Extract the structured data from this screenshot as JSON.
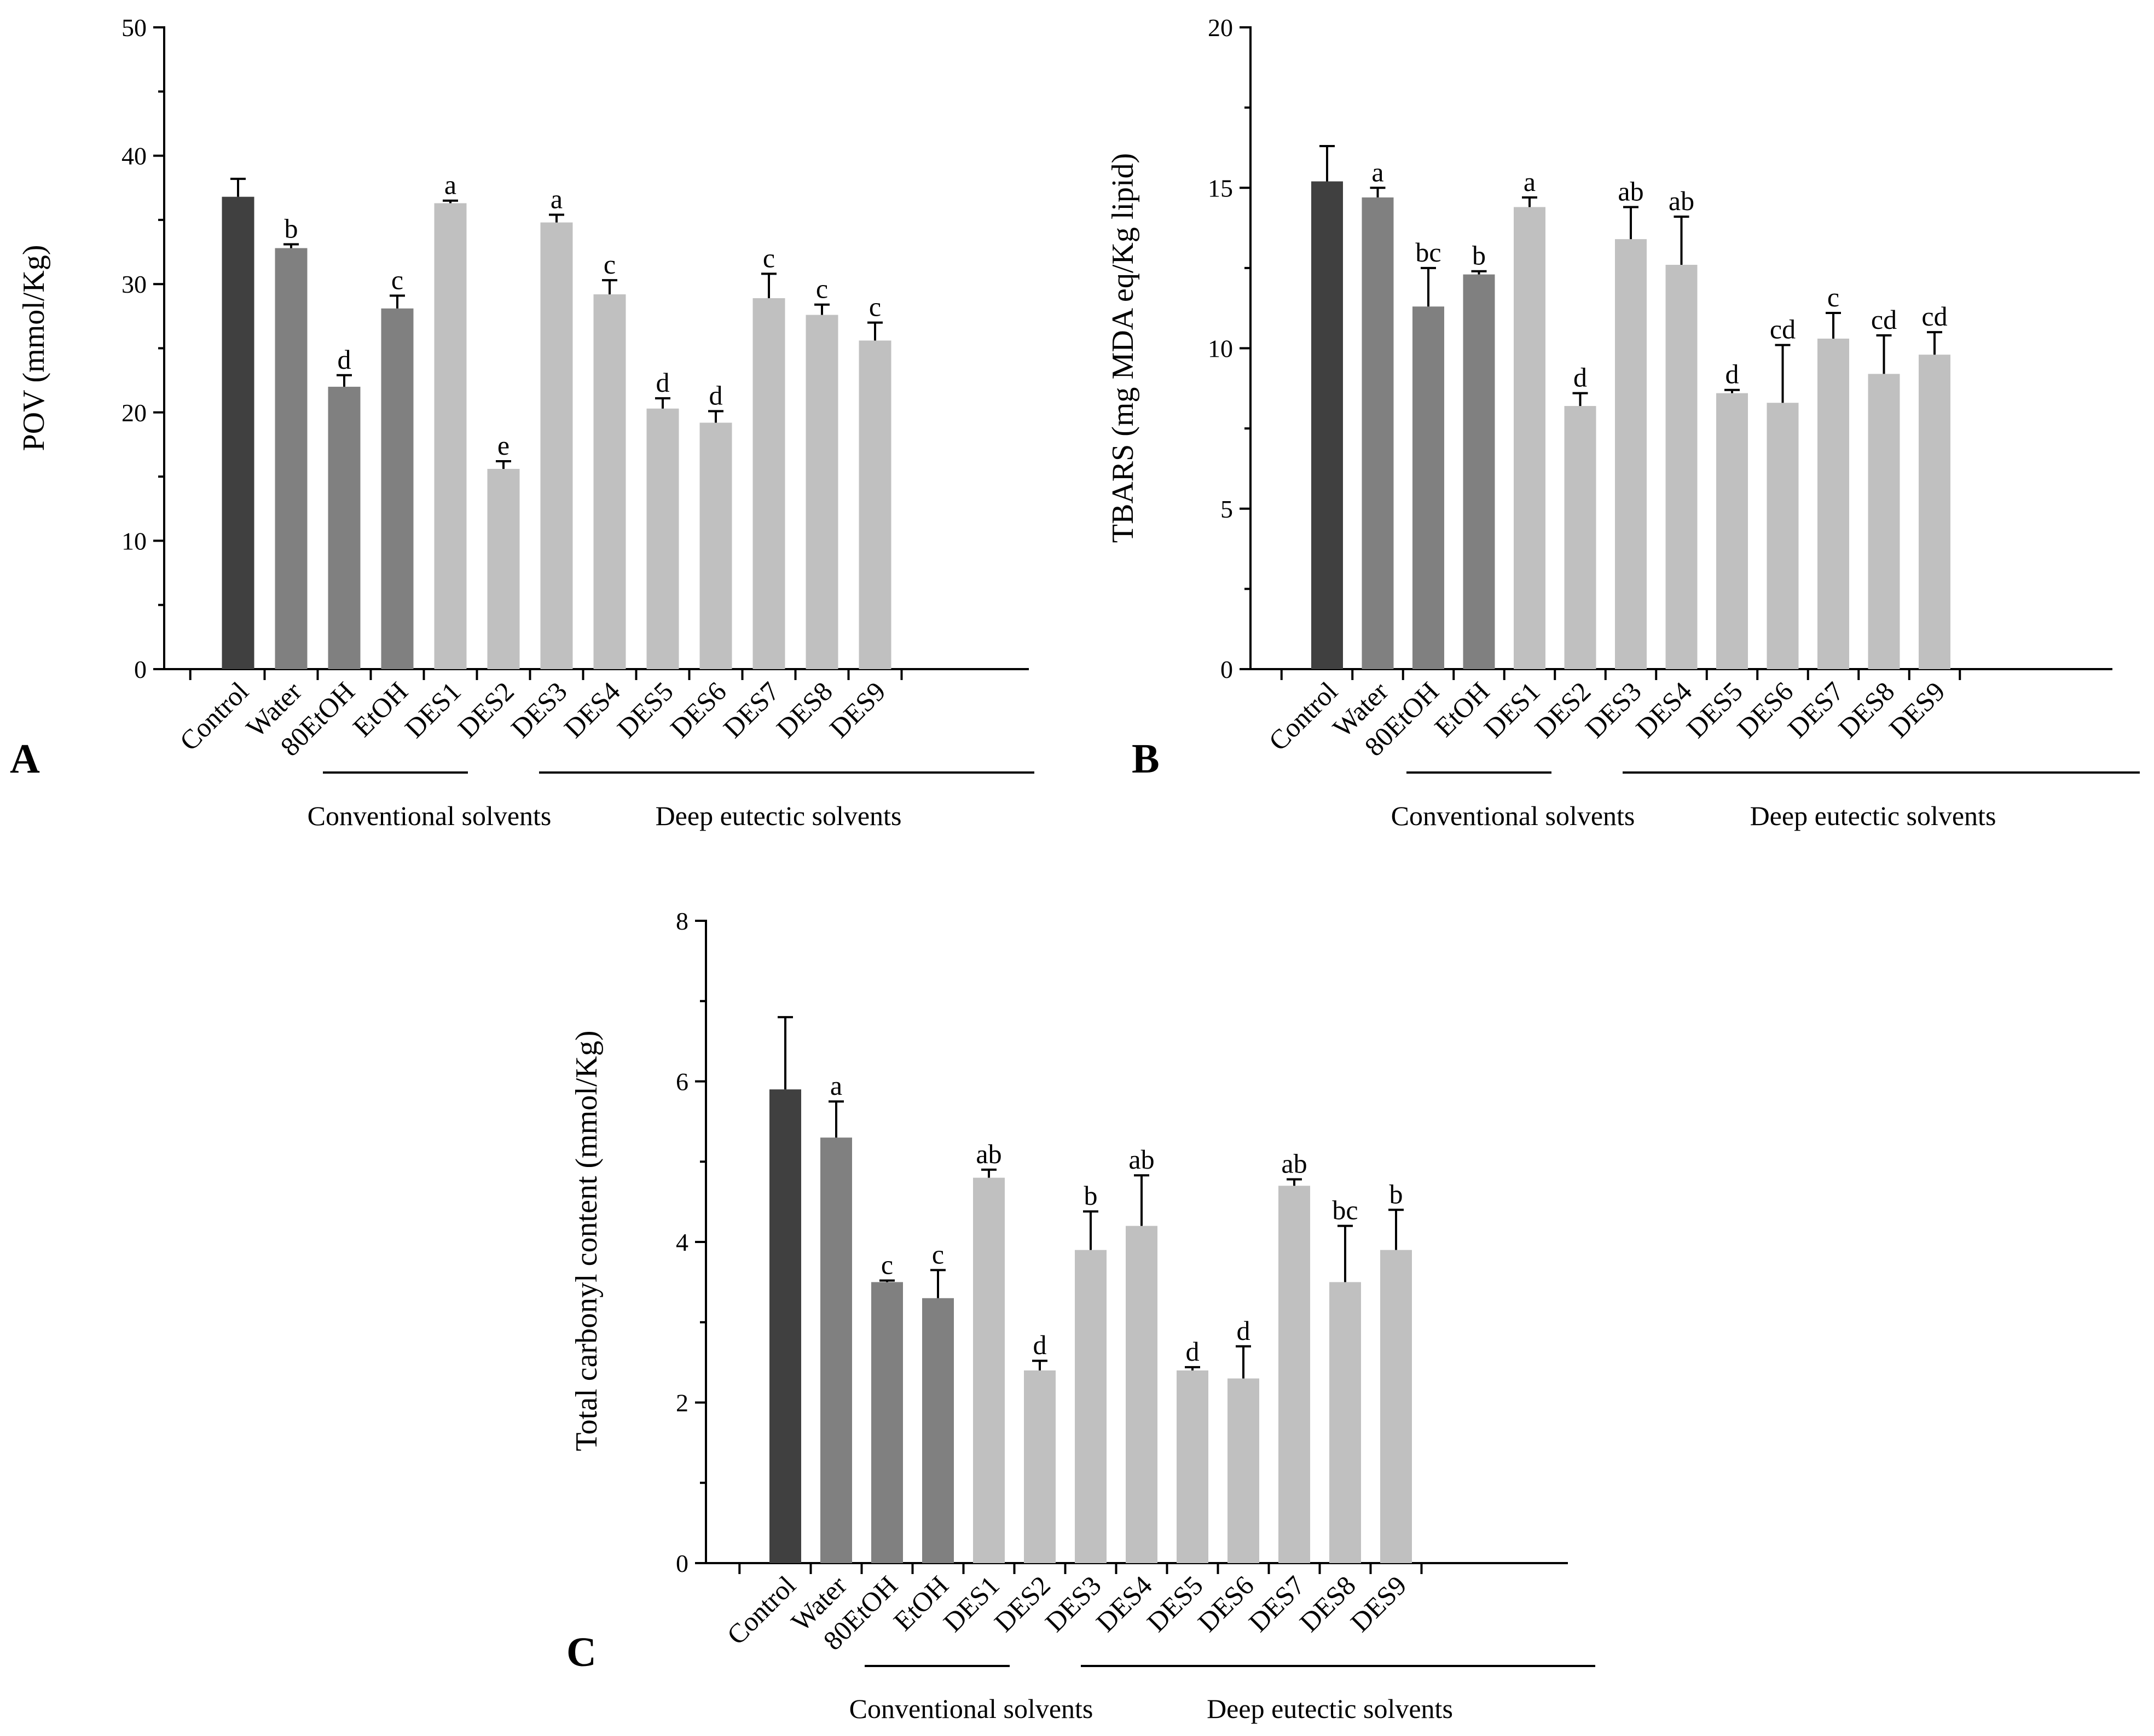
{
  "colors": {
    "control": "#404040",
    "conventional": "#808080",
    "des": "#c0c0c0",
    "axis": "#000000"
  },
  "chart_data": [
    {
      "type": "bar",
      "panel_label": "A",
      "ylabel": "POV (mmol/Kg)",
      "ylim": [
        0,
        50
      ],
      "yticks": [
        "0",
        "10",
        "20",
        "30",
        "40",
        "50"
      ],
      "categories": [
        "Control",
        "Water",
        "80EtOH",
        "EtOH",
        "DES1",
        "DES2",
        "DES3",
        "DES4",
        "DES5",
        "DES6",
        "DES7",
        "DES8",
        "DES9"
      ],
      "values": [
        36.8,
        32.8,
        22.0,
        28.1,
        36.3,
        15.6,
        34.8,
        29.2,
        20.3,
        19.2,
        28.9,
        27.6,
        25.6
      ],
      "errors": [
        1.4,
        0.3,
        0.9,
        1.0,
        0.2,
        0.6,
        0.6,
        1.1,
        0.8,
        0.9,
        1.9,
        0.8,
        1.4
      ],
      "significance": [
        "",
        "b",
        "d",
        "c",
        "a",
        "e",
        "a",
        "c",
        "d",
        "d",
        "c",
        "c",
        "c"
      ],
      "groups": [
        {
          "label": "Conventional solvents",
          "members": [
            "Water",
            "80EtOH",
            "EtOH"
          ]
        },
        {
          "label": "Deep eutectic solvents",
          "members": [
            "DES1",
            "DES2",
            "DES3",
            "DES4",
            "DES5",
            "DES6",
            "DES7",
            "DES8",
            "DES9"
          ]
        }
      ],
      "grid": false
    },
    {
      "type": "bar",
      "panel_label": "B",
      "ylabel": "TBARS (mg MDA eq/Kg lipid)",
      "ylim": [
        0,
        20
      ],
      "yticks": [
        "0",
        "5",
        "10",
        "15",
        "20"
      ],
      "categories": [
        "Control",
        "Water",
        "80EtOH",
        "EtOH",
        "DES1",
        "DES2",
        "DES3",
        "DES4",
        "DES5",
        "DES6",
        "DES7",
        "DES8",
        "DES9"
      ],
      "values": [
        15.2,
        14.7,
        11.3,
        12.3,
        14.4,
        8.2,
        13.4,
        12.6,
        8.6,
        8.3,
        10.3,
        9.2,
        9.8
      ],
      "errors": [
        1.1,
        0.3,
        1.2,
        0.1,
        0.3,
        0.4,
        1.0,
        1.5,
        0.1,
        1.8,
        0.8,
        1.2,
        0.7
      ],
      "significance": [
        "",
        "a",
        "bc",
        "b",
        "a",
        "d",
        "ab",
        "ab",
        "d",
        "cd",
        "c",
        "cd",
        "cd"
      ],
      "groups": [
        {
          "label": "Conventional solvents",
          "members": [
            "Water",
            "80EtOH",
            "EtOH"
          ]
        },
        {
          "label": "Deep eutectic solvents",
          "members": [
            "DES1",
            "DES2",
            "DES3",
            "DES4",
            "DES5",
            "DES6",
            "DES7",
            "DES8",
            "DES9"
          ]
        }
      ],
      "grid": false
    },
    {
      "type": "bar",
      "panel_label": "C",
      "ylabel": "Total carbonyl content (mmol/Kg)",
      "ylim": [
        0,
        8
      ],
      "yticks": [
        "0",
        "2",
        "4",
        "6",
        "8"
      ],
      "categories": [
        "Control",
        "Water",
        "80EtOH",
        "EtOH",
        "DES1",
        "DES2",
        "DES3",
        "DES4",
        "DES5",
        "DES6",
        "DES7",
        "DES8",
        "DES9"
      ],
      "values": [
        5.9,
        5.3,
        3.5,
        3.3,
        4.8,
        2.4,
        3.9,
        4.2,
        2.4,
        2.3,
        4.7,
        3.5,
        3.9
      ],
      "errors": [
        0.9,
        0.45,
        0.02,
        0.35,
        0.1,
        0.12,
        0.48,
        0.63,
        0.04,
        0.4,
        0.08,
        0.7,
        0.5
      ],
      "significance": [
        "",
        "a",
        "c",
        "c",
        "ab",
        "d",
        "b",
        "ab",
        "d",
        "d",
        "ab",
        "bc",
        "b"
      ],
      "groups": [
        {
          "label": "Conventional solvents",
          "members": [
            "Water",
            "80EtOH",
            "EtOH"
          ]
        },
        {
          "label": "Deep eutectic solvents",
          "members": [
            "DES1",
            "DES2",
            "DES3",
            "DES4",
            "DES5",
            "DES6",
            "DES7",
            "DES8",
            "DES9"
          ]
        }
      ],
      "grid": false
    }
  ]
}
